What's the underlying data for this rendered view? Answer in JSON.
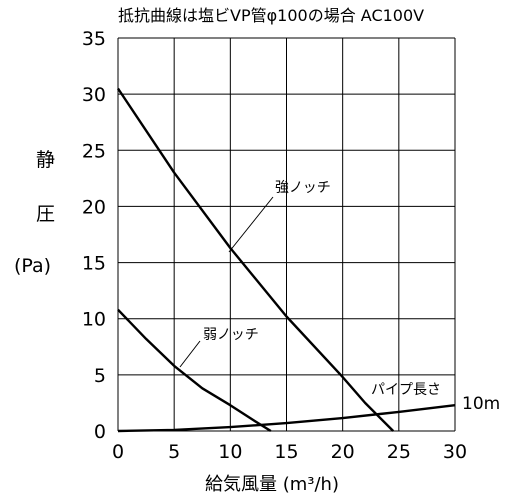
{
  "chart_data": {
    "type": "line",
    "title": "抵抗曲線は塩ビVP管φ100の場合 AC100V",
    "ylabel_lines": [
      "静",
      "圧",
      "(Pa)"
    ],
    "xlabel": "給気風量 (m³/h)",
    "xlim": [
      0,
      30
    ],
    "ylim": [
      0,
      35
    ],
    "x_ticks": [
      "0",
      "5",
      "10",
      "15",
      "20",
      "25",
      "30"
    ],
    "y_ticks": [
      "0",
      "5",
      "10",
      "15",
      "20",
      "25",
      "30",
      "35"
    ],
    "grid": true,
    "series": [
      {
        "name": "強ノッチ",
        "x": [
          0,
          5,
          10,
          15,
          20,
          22,
          24.5
        ],
        "y": [
          30.5,
          23,
          16.3,
          10.2,
          4.8,
          2.5,
          0
        ]
      },
      {
        "name": "弱ノッチ",
        "x": [
          0,
          2.5,
          5,
          7.5,
          10,
          12,
          13.6
        ],
        "y": [
          10.8,
          8.2,
          5.8,
          3.8,
          2.3,
          1,
          0
        ]
      },
      {
        "name": "パイプ長さ",
        "x": [
          0,
          5,
          10,
          15,
          20,
          25,
          30
        ],
        "y": [
          0,
          0.1,
          0.35,
          0.7,
          1.15,
          1.7,
          2.3
        ]
      }
    ],
    "annotations": [
      "強ノッチ",
      "弱ノッチ",
      "パイプ長さ",
      "10m"
    ]
  }
}
